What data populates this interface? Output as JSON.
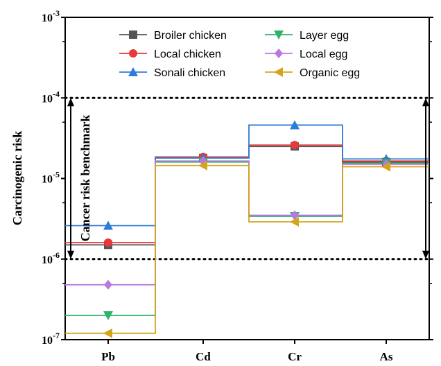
{
  "chart_data": {
    "type": "line",
    "step": true,
    "ylabel": "Carcinogenic risk",
    "yscale": "log",
    "ylim": [
      1e-07,
      0.001
    ],
    "ytick_labels": {
      "base": "10",
      "exponents": [
        "-7",
        "-6",
        "-5",
        "-4",
        "-3"
      ]
    },
    "categories": [
      "Pb",
      "Cd",
      "Cr",
      "As"
    ],
    "legend_position": "top",
    "series": [
      {
        "name": "Broiler chicken",
        "color": "#555555",
        "marker": "square",
        "values": [
          1.5e-06,
          1.8e-05,
          2.5e-05,
          1.6e-05
        ]
      },
      {
        "name": "Local chicken",
        "color": "#e8383a",
        "marker": "circle",
        "values": [
          1.6e-06,
          1.85e-05,
          2.6e-05,
          1.65e-05
        ]
      },
      {
        "name": "Sonali chicken",
        "color": "#2f7bd8",
        "marker": "triangle-up",
        "values": [
          2.6e-06,
          1.8e-05,
          4.6e-05,
          1.75e-05
        ]
      },
      {
        "name": "Layer egg",
        "color": "#2fb36b",
        "marker": "triangle-down",
        "values": [
          2e-07,
          1.6e-05,
          3.4e-06,
          1.55e-05
        ]
      },
      {
        "name": "Local egg",
        "color": "#bb77e0",
        "marker": "diamond",
        "values": [
          4.8e-07,
          1.65e-05,
          3.5e-06,
          1.5e-05
        ]
      },
      {
        "name": "Organic egg",
        "color": "#d4a419",
        "marker": "triangle-left",
        "values": [
          1.2e-07,
          1.45e-05,
          2.9e-06,
          1.4e-05
        ]
      }
    ],
    "benchmark": {
      "label": "Cancer risk benchmark",
      "lower": 1e-06,
      "upper": 0.0001
    }
  }
}
